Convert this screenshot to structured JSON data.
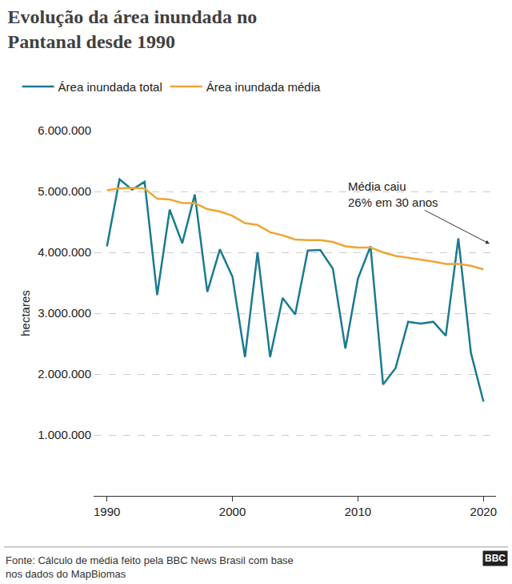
{
  "chart_data": {
    "type": "line",
    "title": "Evolução da área inundada no\nPantanal desde 1990",
    "y_label": "hectares",
    "x": [
      1990,
      1991,
      1992,
      1993,
      1994,
      1995,
      1996,
      1997,
      1998,
      1999,
      2000,
      2001,
      2002,
      2003,
      2004,
      2005,
      2006,
      2007,
      2008,
      2009,
      2010,
      2011,
      2012,
      2013,
      2014,
      2015,
      2016,
      2017,
      2018,
      2019,
      2020
    ],
    "series": [
      {
        "name": "Área inundada total",
        "color": "#1b7a91",
        "values": [
          4100000,
          5200000,
          5030000,
          5160000,
          3300000,
          4700000,
          4150000,
          4950000,
          3350000,
          4050000,
          3600000,
          2280000,
          4000000,
          2280000,
          3250000,
          2980000,
          4030000,
          4040000,
          3730000,
          2420000,
          3570000,
          4100000,
          1830000,
          2100000,
          2860000,
          2830000,
          2860000,
          2630000,
          4230000,
          2350000,
          1550000
        ]
      },
      {
        "name": "Área inundada média",
        "color": "#eda634",
        "values": [
          5020000,
          5050000,
          5060000,
          5050000,
          4880000,
          4870000,
          4810000,
          4810000,
          4710000,
          4670000,
          4600000,
          4480000,
          4450000,
          4330000,
          4280000,
          4210000,
          4200000,
          4200000,
          4170000,
          4100000,
          4080000,
          4080000,
          4000000,
          3940000,
          3910000,
          3880000,
          3850000,
          3810000,
          3810000,
          3780000,
          3720000
        ]
      }
    ],
    "xlim": [
      1989,
      2021
    ],
    "xticks": [
      1990,
      2000,
      2010,
      2020
    ],
    "ylim": [
      0,
      6000000
    ],
    "yticks": [
      {
        "value": 1000000,
        "label": "1.000.000"
      },
      {
        "value": 2000000,
        "label": "2.000.000"
      },
      {
        "value": 3000000,
        "label": "3.000.000"
      },
      {
        "value": 4000000,
        "label": "4.000.000"
      },
      {
        "value": 5000000,
        "label": "5.000.000"
      },
      {
        "value": 6000000,
        "label": "6.000.000"
      }
    ],
    "grid": true,
    "legend": "top",
    "annotation": "Média caiu\n26% em 30 anos",
    "source": "Fonte: Cálculo de média feito pela BBC News Brasil com base\nnos dados do MapBiomas",
    "logo": "BBC"
  }
}
